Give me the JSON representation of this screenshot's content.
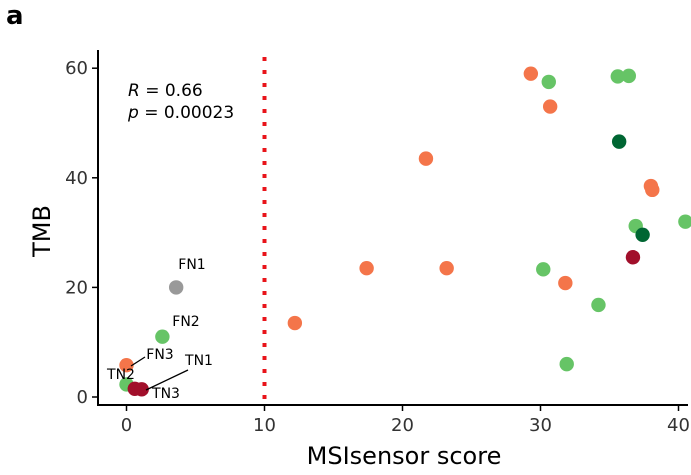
{
  "panel_label": "a",
  "stats": {
    "r_symbol": "R",
    "r_value": " = 0.66",
    "p_symbol": "p",
    "p_value": " = 0.00023"
  },
  "colors": {
    "orange": "#f4754a",
    "light_green": "#66c466",
    "dark_green": "#006633",
    "dark_red": "#a10f2b",
    "gray": "#999999",
    "threshold": "#e8141a"
  },
  "chart_data": {
    "type": "scatter",
    "xlabel": "MSIsensor score",
    "ylabel": "TMB",
    "xlim": [
      -2,
      40
    ],
    "ylim": [
      -1.5,
      61
    ],
    "xticks": [
      0,
      10,
      20,
      30,
      40
    ],
    "yticks": [
      0,
      20,
      40,
      60
    ],
    "grid": false,
    "threshold": {
      "x": 10,
      "style": "dotted",
      "color": "#e8141a"
    },
    "points": [
      {
        "x": 12.2,
        "y": 13.5,
        "color": "orange"
      },
      {
        "x": 17.4,
        "y": 23.5,
        "color": "orange"
      },
      {
        "x": 21.7,
        "y": 43.5,
        "color": "orange"
      },
      {
        "x": 23.2,
        "y": 23.5,
        "color": "orange"
      },
      {
        "x": 29.3,
        "y": 59.0,
        "color": "orange"
      },
      {
        "x": 30.7,
        "y": 53.0,
        "color": "orange"
      },
      {
        "x": 31.8,
        "y": 20.8,
        "color": "orange"
      },
      {
        "x": 38.0,
        "y": 38.5,
        "color": "orange"
      },
      {
        "x": 38.1,
        "y": 37.8,
        "color": "orange"
      },
      {
        "x": 30.6,
        "y": 57.5,
        "color": "light_green"
      },
      {
        "x": 35.6,
        "y": 58.5,
        "color": "light_green"
      },
      {
        "x": 36.4,
        "y": 58.6,
        "color": "light_green"
      },
      {
        "x": 30.2,
        "y": 23.3,
        "color": "light_green"
      },
      {
        "x": 34.2,
        "y": 16.8,
        "color": "light_green"
      },
      {
        "x": 31.9,
        "y": 6.0,
        "color": "light_green"
      },
      {
        "x": 36.9,
        "y": 31.2,
        "color": "light_green"
      },
      {
        "x": 40.5,
        "y": 32.0,
        "color": "light_green"
      },
      {
        "x": 35.7,
        "y": 46.6,
        "color": "dark_green"
      },
      {
        "x": 37.4,
        "y": 29.6,
        "color": "dark_green"
      },
      {
        "x": 36.7,
        "y": 25.5,
        "color": "dark_red"
      },
      {
        "x": 3.6,
        "y": 20.0,
        "color": "gray",
        "label": "FN1"
      },
      {
        "x": 2.6,
        "y": 11.0,
        "color": "light_green",
        "label": "FN2"
      },
      {
        "x": 0.0,
        "y": 5.8,
        "color": "orange",
        "label": "FN3"
      },
      {
        "x": 0.0,
        "y": 2.3,
        "color": "light_green",
        "label": "TN2"
      },
      {
        "x": 0.6,
        "y": 1.5,
        "color": "dark_red",
        "label": "TN3"
      },
      {
        "x": 1.1,
        "y": 1.4,
        "color": "dark_red",
        "label": "TN1"
      }
    ]
  }
}
